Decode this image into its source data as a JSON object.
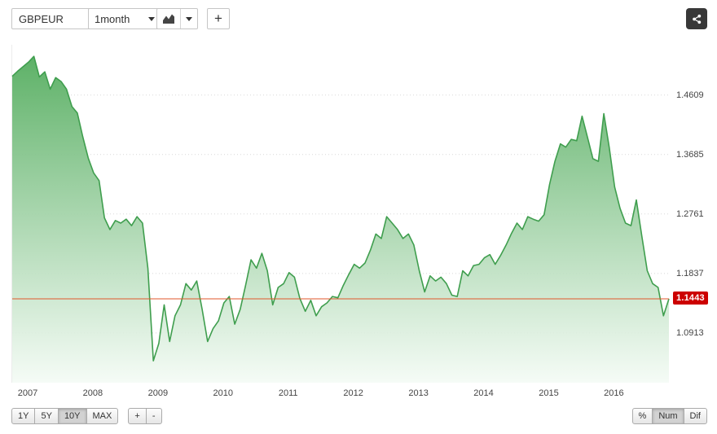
{
  "toolbar": {
    "symbol_input": {
      "value": "GBPEUR"
    },
    "interval_dropdown": {
      "value": "1month"
    },
    "add_button": {
      "label": "+"
    },
    "icons": {
      "chart_type": "area-chart-icon",
      "share": "share-icon",
      "dropdown": "chevron-down-icon"
    }
  },
  "chart_data": {
    "type": "area",
    "title": "GBPEUR exchange rate, 10 year monthly chart",
    "interval": "1month",
    "x_start": {
      "year": 2006,
      "month": 10
    },
    "series": [
      {
        "name": "GBPEUR",
        "values": [
          1.49,
          1.498,
          1.505,
          1.512,
          1.521,
          1.489,
          1.497,
          1.47,
          1.488,
          1.482,
          1.47,
          1.443,
          1.433,
          1.396,
          1.363,
          1.34,
          1.328,
          1.27,
          1.252,
          1.266,
          1.262,
          1.268,
          1.258,
          1.272,
          1.262,
          1.192,
          1.048,
          1.075,
          1.135,
          1.078,
          1.118,
          1.135,
          1.168,
          1.158,
          1.172,
          1.128,
          1.078,
          1.098,
          1.11,
          1.138,
          1.148,
          1.105,
          1.128,
          1.165,
          1.205,
          1.192,
          1.215,
          1.188,
          1.135,
          1.162,
          1.168,
          1.185,
          1.178,
          1.145,
          1.125,
          1.142,
          1.118,
          1.132,
          1.138,
          1.148,
          1.146,
          1.165,
          1.182,
          1.198,
          1.192,
          1.2,
          1.22,
          1.245,
          1.238,
          1.272,
          1.262,
          1.252,
          1.238,
          1.245,
          1.228,
          1.188,
          1.155,
          1.18,
          1.172,
          1.178,
          1.168,
          1.15,
          1.148,
          1.188,
          1.18,
          1.196,
          1.198,
          1.208,
          1.213,
          1.198,
          1.212,
          1.228,
          1.246,
          1.262,
          1.252,
          1.272,
          1.268,
          1.265,
          1.275,
          1.322,
          1.358,
          1.385,
          1.38,
          1.392,
          1.39,
          1.428,
          1.395,
          1.362,
          1.358,
          1.432,
          1.38,
          1.318,
          1.285,
          1.262,
          1.258,
          1.298,
          1.242,
          1.188,
          1.168,
          1.162,
          1.118,
          1.1443
        ]
      }
    ],
    "y_ticks": [
      "1.4609",
      "1.3685",
      "1.2761",
      "1.1837",
      "1.0913"
    ],
    "y_domain": [
      1.014,
      1.539
    ],
    "x_ticks": [
      "2007",
      "2008",
      "2009",
      "2010",
      "2011",
      "2012",
      "2013",
      "2014",
      "2015",
      "2016"
    ],
    "current_value": "1.1443",
    "grid": true,
    "legend": false,
    "colors": {
      "line": "#3f9e4e",
      "fill_top": "#55ad5f",
      "fill_bottom": "#f4fbf5",
      "gridline": "#d8d8d8",
      "current_line": "#e0572b",
      "badge_bg": "#cc0000",
      "badge_text": "#ffffff"
    }
  },
  "range_controls": {
    "options": [
      {
        "label": "1Y",
        "selected": false
      },
      {
        "label": "5Y",
        "selected": false
      },
      {
        "label": "10Y",
        "selected": true
      },
      {
        "label": "MAX",
        "selected": false
      }
    ]
  },
  "zoom_controls": {
    "in_label": "+",
    "out_label": "-"
  },
  "display_mode_controls": {
    "options": [
      {
        "label": "%",
        "selected": false
      },
      {
        "label": "Num",
        "selected": true
      },
      {
        "label": "Dif",
        "selected": false
      }
    ]
  }
}
